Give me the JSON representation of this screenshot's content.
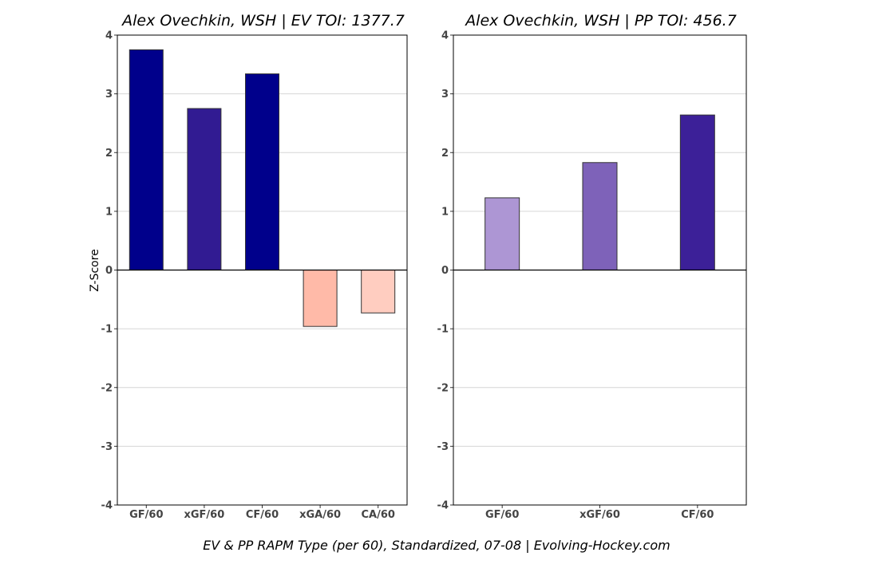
{
  "chart_data": [
    {
      "type": "bar",
      "title": "Alex Ovechkin, WSH  |  EV TOI: 1377.7",
      "xlabel": "",
      "ylabel": "Z-Score",
      "ylim": [
        -4,
        4
      ],
      "yticks": [
        -4,
        -3,
        -2,
        -1,
        0,
        1,
        2,
        3,
        4
      ],
      "grid": true,
      "categories": [
        "GF/60",
        "xGF/60",
        "CF/60",
        "xGA/60",
        "CA/60"
      ],
      "values": [
        3.75,
        2.75,
        3.34,
        -0.96,
        -0.73
      ],
      "colors": [
        "#00008b",
        "#311b92",
        "#00008b",
        "#ffbaa8",
        "#ffcdc0"
      ]
    },
    {
      "type": "bar",
      "title": "Alex Ovechkin, WSH  |  PP TOI: 456.7",
      "xlabel": "",
      "ylabel": "",
      "ylim": [
        -4,
        4
      ],
      "yticks": [
        -4,
        -3,
        -2,
        -1,
        0,
        1,
        2,
        3,
        4
      ],
      "grid": true,
      "categories": [
        "GF/60",
        "xGF/60",
        "CF/60"
      ],
      "values": [
        1.23,
        1.83,
        2.64
      ],
      "colors": [
        "#ad96d4",
        "#7e62b9",
        "#3c2098"
      ]
    }
  ],
  "footer": "EV & PP RAPM Type (per 60), Standardized, 07-08    |    Evolving-Hockey.com"
}
